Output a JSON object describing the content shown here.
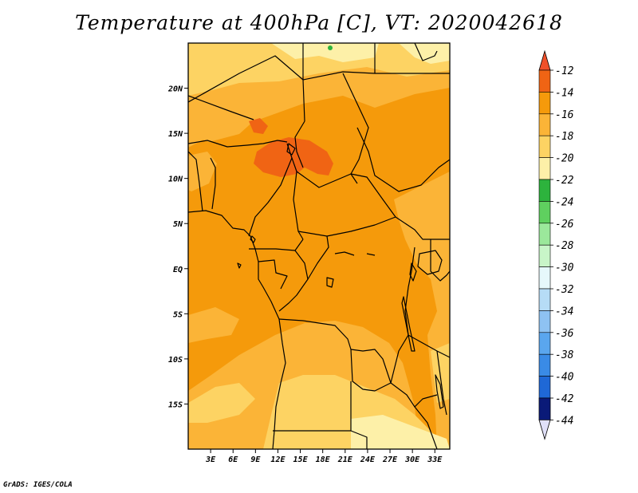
{
  "title": "Temperature at 400hPa [C], VT: 2020042618",
  "footer": "GrADS: IGES/COLA",
  "map": {
    "lon_range": [
      0,
      35
    ],
    "lat_range": [
      -20,
      25
    ],
    "lat_ticks": [
      {
        "lat": 20,
        "label": "20N"
      },
      {
        "lat": 15,
        "label": "15N"
      },
      {
        "lat": 10,
        "label": "10N"
      },
      {
        "lat": 5,
        "label": "5N"
      },
      {
        "lat": 0,
        "label": "EQ"
      },
      {
        "lat": -5,
        "label": "5S"
      },
      {
        "lat": -10,
        "label": "10S"
      },
      {
        "lat": -15,
        "label": "15S"
      }
    ],
    "lon_ticks": [
      {
        "lon": 3,
        "label": "3E"
      },
      {
        "lon": 6,
        "label": "6E"
      },
      {
        "lon": 9,
        "label": "9E"
      },
      {
        "lon": 12,
        "label": "12E"
      },
      {
        "lon": 15,
        "label": "15E"
      },
      {
        "lon": 18,
        "label": "18E"
      },
      {
        "lon": 21,
        "label": "21E"
      },
      {
        "lon": 24,
        "label": "24E"
      },
      {
        "lon": 27,
        "label": "27E"
      },
      {
        "lon": 30,
        "label": "30E"
      },
      {
        "lon": 33,
        "label": "33E"
      }
    ]
  },
  "colorbar": {
    "top_color": "#f0502a",
    "bottom_color": "#e0e0f8",
    "bins": [
      {
        "color": "#f06414",
        "label": "-12"
      },
      {
        "color": "#f59a0b",
        "label": "-14"
      },
      {
        "color": "#fbb437",
        "label": "-16"
      },
      {
        "color": "#fdd363",
        "label": "-18"
      },
      {
        "color": "#fdf0a8",
        "label": "-20"
      },
      {
        "color": "#2db33d",
        "label": "-22"
      },
      {
        "color": "#5fd05f",
        "label": "-24"
      },
      {
        "color": "#9be89b",
        "label": "-26"
      },
      {
        "color": "#c8f5c8",
        "label": "-28"
      },
      {
        "color": "#e6f8fb",
        "label": "-30"
      },
      {
        "color": "#b6dcf6",
        "label": "-32"
      },
      {
        "color": "#8ec2f2",
        "label": "-34"
      },
      {
        "color": "#5aa6ee",
        "label": "-36"
      },
      {
        "color": "#3a8be6",
        "label": "-38"
      },
      {
        "color": "#1f68d6",
        "label": "-40"
      },
      {
        "color": "#1446b0",
        "label": "-42"
      },
      {
        "color": "#0a1a78",
        "label": "-44"
      }
    ]
  }
}
